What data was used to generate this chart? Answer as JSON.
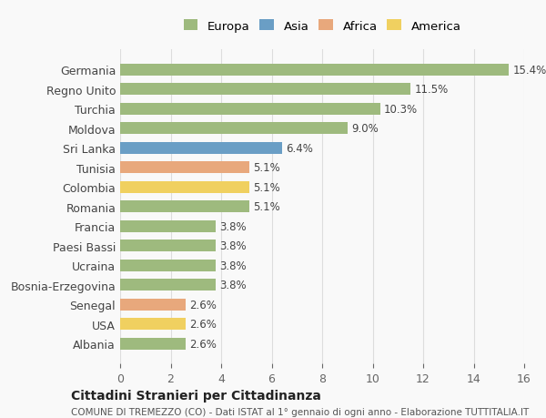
{
  "countries": [
    "Germania",
    "Regno Unito",
    "Turchia",
    "Moldova",
    "Sri Lanka",
    "Tunisia",
    "Colombia",
    "Romania",
    "Francia",
    "Paesi Bassi",
    "Ucraina",
    "Bosnia-Erzegovina",
    "Senegal",
    "USA",
    "Albania"
  ],
  "values": [
    15.4,
    11.5,
    10.3,
    9.0,
    6.4,
    5.1,
    5.1,
    5.1,
    3.8,
    3.8,
    3.8,
    3.8,
    2.6,
    2.6,
    2.6
  ],
  "continents": [
    "Europa",
    "Europa",
    "Europa",
    "Europa",
    "Asia",
    "Africa",
    "America",
    "Europa",
    "Europa",
    "Europa",
    "Europa",
    "Europa",
    "Africa",
    "America",
    "Europa"
  ],
  "colors": {
    "Europa": "#9eba7e",
    "Asia": "#6a9ec5",
    "Africa": "#e8a87c",
    "America": "#f0d060"
  },
  "legend_order": [
    "Europa",
    "Asia",
    "Africa",
    "America"
  ],
  "title": "Cittadini Stranieri per Cittadinanza",
  "subtitle": "COMUNE DI TREMEZZO (CO) - Dati ISTAT al 1° gennaio di ogni anno - Elaborazione TUTTITALIA.IT",
  "xlim": [
    0,
    16
  ],
  "xticks": [
    0,
    2,
    4,
    6,
    8,
    10,
    12,
    14,
    16
  ],
  "background_color": "#f9f9f9",
  "bar_height": 0.6,
  "grid_color": "#dddddd"
}
